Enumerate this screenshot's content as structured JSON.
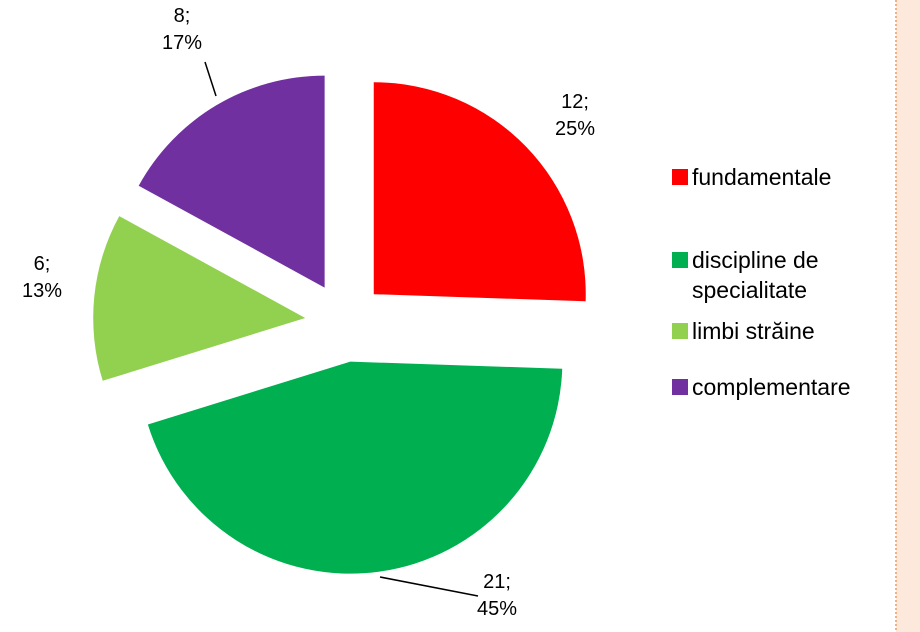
{
  "chart_data": {
    "type": "pie",
    "categories": [
      "fundamentale",
      "discipline de specialitate",
      "limbi străine",
      "complementare"
    ],
    "values": [
      12,
      21,
      6,
      8
    ],
    "value_labels": [
      "12;\n25%",
      "21;\n45%",
      "6;\n13%",
      "8;\n17%"
    ],
    "colors": [
      "#ff0000",
      "#00b050",
      "#92d050",
      "#7030a0"
    ],
    "legend": "right"
  }
}
